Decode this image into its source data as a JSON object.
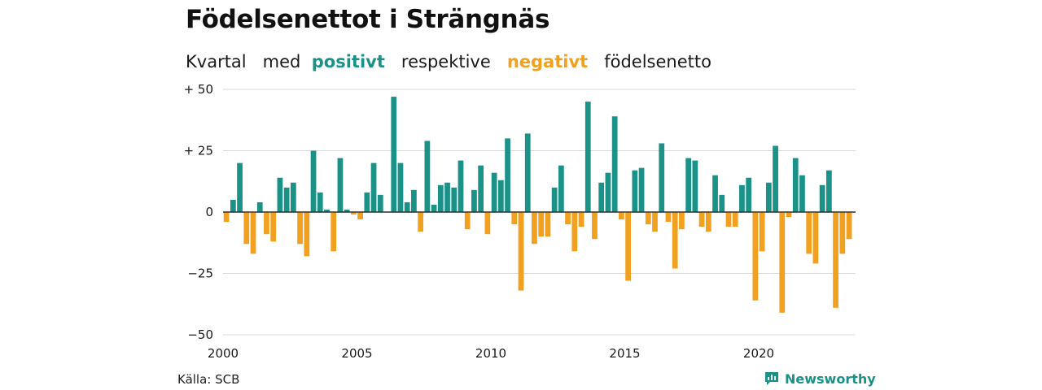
{
  "title": "Födelsenettot i Strängnäs",
  "subtitle": {
    "pre": "Kvartal",
    "mid1": "med",
    "positive": "positivt",
    "mid2": "respektive",
    "negative": "negativt",
    "post": "födelsenetto"
  },
  "source": "Källa: SCB",
  "brand": "Newsworthy",
  "colors": {
    "positive": "#1a9288",
    "negative": "#f1a01f",
    "grid": "#d9d9d9",
    "zero": "#222222"
  },
  "chart_data": {
    "type": "bar",
    "start_year": 2000,
    "periods_per_year": 4,
    "ylim": [
      -50,
      50
    ],
    "y_ticks": [
      {
        "value": 50,
        "label": "+ 50"
      },
      {
        "value": 25,
        "label": "+ 25"
      },
      {
        "value": 0,
        "label": "0"
      },
      {
        "value": -25,
        "label": "−25"
      },
      {
        "value": -50,
        "label": "−50"
      }
    ],
    "x_ticks": [
      {
        "year": 2000,
        "label": "2000"
      },
      {
        "year": 2005,
        "label": "2005"
      },
      {
        "year": 2010,
        "label": "2010"
      },
      {
        "year": 2015,
        "label": "2015"
      },
      {
        "year": 2020,
        "label": "2020"
      }
    ],
    "values": [
      -4,
      5,
      20,
      -13,
      -17,
      4,
      -9,
      -12,
      14,
      10,
      12,
      -13,
      -18,
      25,
      8,
      1,
      -16,
      22,
      1,
      -1,
      -3,
      8,
      20,
      7,
      0,
      47,
      20,
      4,
      9,
      -8,
      29,
      3,
      11,
      12,
      10,
      21,
      -7,
      9,
      19,
      -9,
      16,
      13,
      30,
      -5,
      -32,
      32,
      -13,
      -10,
      -10,
      10,
      19,
      -5,
      -16,
      -6,
      45,
      -11,
      12,
      16,
      39,
      -3,
      -28,
      17,
      18,
      -5,
      -8,
      28,
      -4,
      -23,
      -7,
      22,
      21,
      -6,
      -8,
      15,
      7,
      -6,
      -6,
      11,
      14,
      -36,
      -16,
      12,
      27,
      -41,
      -2,
      22,
      15,
      -17,
      -21,
      11,
      17,
      -39,
      -17,
      -11
    ]
  }
}
